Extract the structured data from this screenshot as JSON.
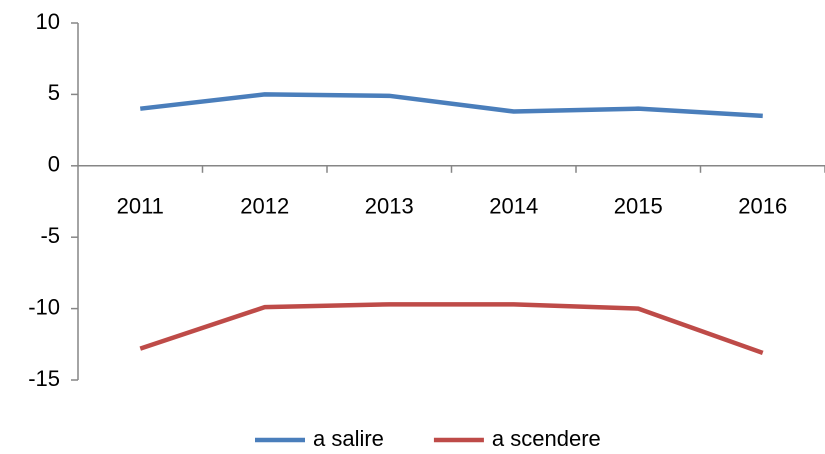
{
  "chart_data": {
    "type": "line",
    "categories": [
      "2011",
      "2012",
      "2013",
      "2014",
      "2015",
      "2016"
    ],
    "series": [
      {
        "name": "a salire",
        "color": "#4a7ebb",
        "values": [
          4,
          5,
          4.9,
          3.8,
          4,
          3.5
        ]
      },
      {
        "name": "a scendere",
        "color": "#be4b48",
        "values": [
          -12.8,
          -9.9,
          -9.7,
          -9.7,
          -10,
          -13.1
        ]
      }
    ],
    "ylim": [
      -15,
      10
    ],
    "yticks": [
      -15,
      -10,
      -5,
      0,
      5,
      10
    ],
    "legend": "bottom"
  }
}
